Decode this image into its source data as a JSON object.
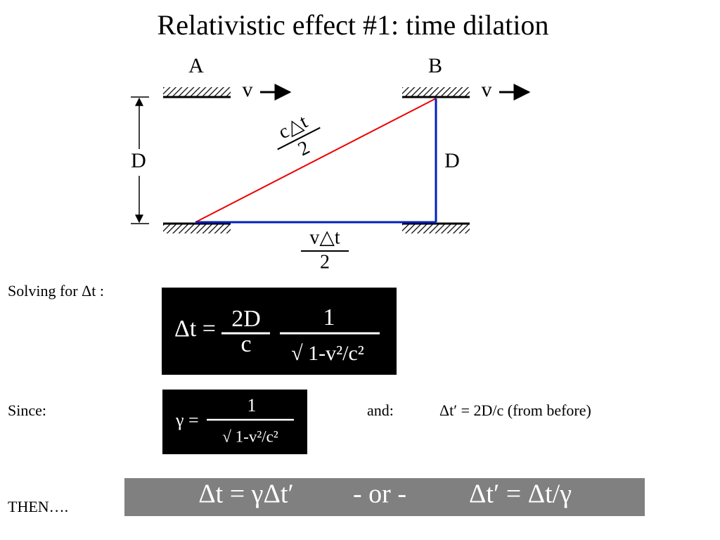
{
  "title": "Relativistic effect #1: time dilation",
  "diagram": {
    "mirror_labels": [
      "A",
      "B"
    ],
    "velocity_labels": [
      "v",
      "v"
    ],
    "distance_labels": [
      "D",
      "D"
    ],
    "hypotenuse": {
      "numerator": "c△t",
      "denominator": "2"
    },
    "base": {
      "numerator": "v△t",
      "denominator": "2"
    }
  },
  "solving": {
    "label": "Solving for Δt :",
    "equation": {
      "lhs": "Δt =",
      "fraction1": {
        "numerator": "2D",
        "denominator": "c"
      },
      "fraction2": {
        "numerator": "1",
        "denominator": "√ 1-v²/c²"
      }
    }
  },
  "since": {
    "label": "Since:",
    "equation": {
      "lhs": "γ =",
      "numerator": "1",
      "denominator": "√ 1-v²/c²"
    },
    "and_label": "and:",
    "and_text": "Δt′ = 2D/c (from before)"
  },
  "then": {
    "label": "THEN….",
    "result": [
      "Δt = γΔt′",
      "- or -",
      "Δt′ = Δt/γ"
    ]
  }
}
